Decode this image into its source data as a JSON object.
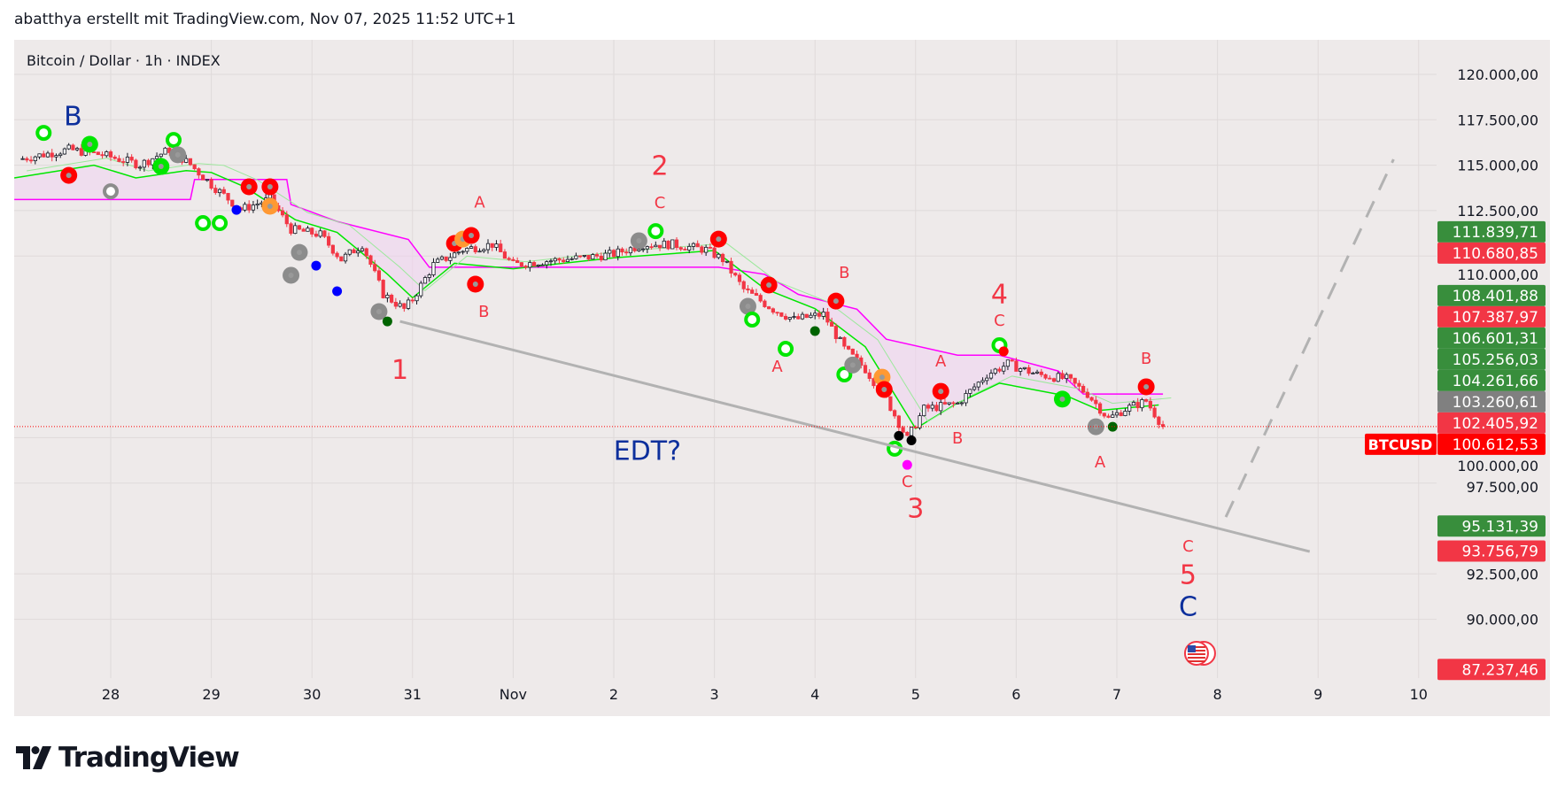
{
  "header": {
    "text": "abatthya erstellt mit TradingView.com, Nov 07, 2025 11:52 UTC+1"
  },
  "symbol": {
    "title": "Bitcoin / Dollar · 1h · INDEX"
  },
  "logo": {
    "text": "TradingView"
  },
  "chart_data": {
    "type": "candlestick",
    "title": "Bitcoin / Dollar · 1h · INDEX",
    "ylim": [
      86000,
      122300
    ],
    "grid": true,
    "y_ticks": [
      {
        "value": 120000,
        "label": "120.000,00"
      },
      {
        "value": 117500,
        "label": "117.500,00"
      },
      {
        "value": 115000,
        "label": "115.000,00"
      },
      {
        "value": 112500,
        "label": "112.500,00"
      },
      {
        "value": 110000,
        "label": "110.000,00"
      },
      {
        "value": 100000,
        "label": "100.000,00"
      },
      {
        "value": 97500,
        "label": "97.500,00"
      },
      {
        "value": 92500,
        "label": "92.500,00"
      },
      {
        "value": 90000,
        "label": "90.000,00"
      }
    ],
    "x_ticks": [
      {
        "t": "2025-10-28T00:00",
        "label": "28"
      },
      {
        "t": "2025-10-29T00:00",
        "label": "29"
      },
      {
        "t": "2025-10-30T00:00",
        "label": "30"
      },
      {
        "t": "2025-10-31T00:00",
        "label": "31"
      },
      {
        "t": "2025-11-01T00:00",
        "label": "Nov"
      },
      {
        "t": "2025-11-02T00:00",
        "label": "2"
      },
      {
        "t": "2025-11-03T00:00",
        "label": "3"
      },
      {
        "t": "2025-11-04T00:00",
        "label": "4"
      },
      {
        "t": "2025-11-05T00:00",
        "label": "5"
      },
      {
        "t": "2025-11-06T00:00",
        "label": "6"
      },
      {
        "t": "2025-11-07T00:00",
        "label": "7"
      },
      {
        "t": "2025-11-08T00:00",
        "label": "8"
      },
      {
        "t": "2025-11-09T00:00",
        "label": "9"
      },
      {
        "t": "2025-11-10T00:00",
        "label": "10"
      }
    ],
    "price_path": [
      [
        "2025-10-27T02:00",
        115320
      ],
      [
        "2025-10-27T14:00",
        115860
      ],
      [
        "2025-10-27T22:00",
        115570
      ],
      [
        "2025-10-28T07:00",
        115030
      ],
      [
        "2025-10-28T14:00",
        115860
      ],
      [
        "2025-10-28T19:00",
        115030
      ],
      [
        "2025-10-29T00:00",
        113930
      ],
      [
        "2025-10-29T07:00",
        112560
      ],
      [
        "2025-10-29T14:00",
        113130
      ],
      [
        "2025-10-29T19:00",
        111470
      ],
      [
        "2025-10-30T02:00",
        111180
      ],
      [
        "2025-10-30T07:00",
        109810
      ],
      [
        "2025-10-30T12:00",
        110640
      ],
      [
        "2025-10-30T17:00",
        107900
      ],
      [
        "2025-10-30T22:00",
        107070
      ],
      [
        "2025-10-31T00:00",
        107620
      ],
      [
        "2025-10-31T05:00",
        109520
      ],
      [
        "2025-10-31T12:00",
        110350
      ],
      [
        "2025-10-31T19:00",
        110640
      ],
      [
        "2025-11-01T00:00",
        109520
      ],
      [
        "2025-11-01T07:00",
        109710
      ],
      [
        "2025-11-01T17:00",
        109910
      ],
      [
        "2025-11-02T00:00",
        110110
      ],
      [
        "2025-11-02T07:00",
        110640
      ],
      [
        "2025-11-02T14:00",
        110640
      ],
      [
        "2025-11-02T22:00",
        110350
      ],
      [
        "2025-11-03T02:00",
        109810
      ],
      [
        "2025-11-03T07:00",
        108160
      ],
      [
        "2025-11-03T14:00",
        107070
      ],
      [
        "2025-11-03T19:00",
        106500
      ],
      [
        "2025-11-04T02:00",
        106790
      ],
      [
        "2025-11-04T07:00",
        104890
      ],
      [
        "2025-11-04T12:00",
        103770
      ],
      [
        "2025-11-04T17:00",
        102120
      ],
      [
        "2025-11-04T22:00",
        99930
      ],
      [
        "2025-11-05T02:00",
        101580
      ],
      [
        "2025-11-05T10:00",
        101870
      ],
      [
        "2025-11-05T17:00",
        103480
      ],
      [
        "2025-11-05T22:00",
        104060
      ],
      [
        "2025-11-06T05:00",
        103480
      ],
      [
        "2025-11-06T12:00",
        103230
      ],
      [
        "2025-11-06T17:00",
        102410
      ],
      [
        "2025-11-06T22:00",
        101040
      ],
      [
        "2025-11-07T02:00",
        101580
      ],
      [
        "2025-11-07T07:00",
        102020
      ],
      [
        "2025-11-07T11:00",
        100612.53
      ]
    ],
    "upper_band": [
      [
        "2025-10-27T01:00",
        113110
      ],
      [
        "2025-10-28T19:00",
        113110
      ],
      [
        "2025-10-28T20:00",
        114210
      ],
      [
        "2025-10-29T18:00",
        114210
      ],
      [
        "2025-10-29T19:00",
        112840
      ],
      [
        "2025-10-30T06:00",
        111900
      ],
      [
        "2025-10-30T23:00",
        110910
      ],
      [
        "2025-10-31T04:00",
        109380
      ],
      [
        "2025-11-03T01:00",
        109380
      ],
      [
        "2025-11-03T12:00",
        108990
      ],
      [
        "2025-11-03T20:00",
        107890
      ],
      [
        "2025-11-04T10:00",
        107070
      ],
      [
        "2025-11-04T17:00",
        105420
      ],
      [
        "2025-11-05T10:00",
        104540
      ],
      [
        "2025-11-05T20:00",
        104540
      ],
      [
        "2025-11-06T10:00",
        103670
      ],
      [
        "2025-11-06T16:00",
        102400
      ],
      [
        "2025-11-07T11:00",
        102400
      ]
    ],
    "lower_band": [
      [
        "2025-10-27T01:00",
        114300
      ],
      [
        "2025-10-27T20:00",
        115000
      ],
      [
        "2025-10-28T06:00",
        114300
      ],
      [
        "2025-10-28T18:00",
        114700
      ],
      [
        "2025-10-29T00:00",
        114600
      ],
      [
        "2025-10-29T08:00",
        113800
      ],
      [
        "2025-10-29T20:00",
        112000
      ],
      [
        "2025-10-30T06:00",
        111300
      ],
      [
        "2025-10-30T18:00",
        109000
      ],
      [
        "2025-10-31T00:00",
        107700
      ],
      [
        "2025-10-31T10:00",
        109600
      ],
      [
        "2025-11-01T00:00",
        109300
      ],
      [
        "2025-11-02T00:00",
        109900
      ],
      [
        "2025-11-03T00:00",
        110300
      ],
      [
        "2025-11-03T12:00",
        108200
      ],
      [
        "2025-11-04T00:00",
        107100
      ],
      [
        "2025-11-04T12:00",
        105000
      ],
      [
        "2025-11-05T00:00",
        100500
      ],
      [
        "2025-11-05T10:00",
        101900
      ],
      [
        "2025-11-05T20:00",
        103000
      ],
      [
        "2025-11-06T12:00",
        102300
      ],
      [
        "2025-11-06T20:00",
        101500
      ],
      [
        "2025-11-07T10:00",
        101800
      ]
    ],
    "markers": [
      {
        "t": "2025-10-27T08:00",
        "p": 116780,
        "color": "#00e600",
        "style": "ring"
      },
      {
        "t": "2025-10-27T19:00",
        "p": 116150,
        "color": "#00e600",
        "style": "fill"
      },
      {
        "t": "2025-10-27T14:00",
        "p": 114440,
        "color": "#ff0000",
        "style": "fill"
      },
      {
        "t": "2025-10-28T00:00",
        "p": 113560,
        "color": "#8c8c8c",
        "style": "ring"
      },
      {
        "t": "2025-10-28T12:00",
        "p": 114930,
        "color": "#00e600",
        "style": "fill"
      },
      {
        "t": "2025-10-28T15:00",
        "p": 116390,
        "color": "#00e600",
        "style": "ring"
      },
      {
        "t": "2025-10-28T16:00",
        "p": 115570,
        "color": "#8c8c8c",
        "style": "fill"
      },
      {
        "t": "2025-10-28T22:00",
        "p": 111810,
        "color": "#00e600",
        "style": "ring"
      },
      {
        "t": "2025-10-29T02:00",
        "p": 111810,
        "color": "#00e600",
        "style": "ring"
      },
      {
        "t": "2025-10-29T06:00",
        "p": 112540,
        "color": "#0000ff",
        "style": "small"
      },
      {
        "t": "2025-10-29T09:00",
        "p": 113810,
        "color": "#ff0000",
        "style": "fill"
      },
      {
        "t": "2025-10-29T14:00",
        "p": 113810,
        "color": "#ff0000",
        "style": "fill"
      },
      {
        "t": "2025-10-29T14:00",
        "p": 112740,
        "color": "#ff9933",
        "style": "fill"
      },
      {
        "t": "2025-10-29T19:00",
        "p": 108940,
        "color": "#8c8c8c",
        "style": "fill"
      },
      {
        "t": "2025-10-29T21:00",
        "p": 110200,
        "color": "#8c8c8c",
        "style": "fill"
      },
      {
        "t": "2025-10-30T01:00",
        "p": 109470,
        "color": "#0000ff",
        "style": "small"
      },
      {
        "t": "2025-10-30T06:00",
        "p": 108060,
        "color": "#0000ff",
        "style": "small"
      },
      {
        "t": "2025-10-30T16:00",
        "p": 106940,
        "color": "#8c8c8c",
        "style": "fill"
      },
      {
        "t": "2025-10-30T18:00",
        "p": 106400,
        "color": "#006400",
        "style": "small"
      },
      {
        "t": "2025-10-31T10:00",
        "p": 110690,
        "color": "#ff0000",
        "style": "fill"
      },
      {
        "t": "2025-10-31T12:00",
        "p": 110930,
        "color": "#ff9933",
        "style": "fill"
      },
      {
        "t": "2025-10-31T14:00",
        "p": 111130,
        "color": "#ff0000",
        "style": "fill"
      },
      {
        "t": "2025-10-31T15:00",
        "p": 108450,
        "color": "#ff0000",
        "style": "fill"
      },
      {
        "t": "2025-11-02T06:00",
        "p": 110840,
        "color": "#8c8c8c",
        "style": "fill"
      },
      {
        "t": "2025-11-02T10:00",
        "p": 111370,
        "color": "#00e600",
        "style": "ring"
      },
      {
        "t": "2025-11-03T01:00",
        "p": 110930,
        "color": "#ff0000",
        "style": "fill"
      },
      {
        "t": "2025-11-03T08:00",
        "p": 107230,
        "color": "#8c8c8c",
        "style": "fill"
      },
      {
        "t": "2025-11-03T09:00",
        "p": 106500,
        "color": "#00e600",
        "style": "ring"
      },
      {
        "t": "2025-11-03T13:00",
        "p": 108400,
        "color": "#ff0000",
        "style": "fill"
      },
      {
        "t": "2025-11-03T17:00",
        "p": 104890,
        "color": "#00e600",
        "style": "ring"
      },
      {
        "t": "2025-11-04T00:00",
        "p": 105870,
        "color": "#006400",
        "style": "small"
      },
      {
        "t": "2025-11-04T05:00",
        "p": 107520,
        "color": "#ff0000",
        "style": "fill"
      },
      {
        "t": "2025-11-04T07:00",
        "p": 103480,
        "color": "#00e600",
        "style": "ring"
      },
      {
        "t": "2025-11-04T09:00",
        "p": 104000,
        "color": "#8c8c8c",
        "style": "fill"
      },
      {
        "t": "2025-11-04T16:00",
        "p": 103330,
        "color": "#ff9933",
        "style": "fill"
      },
      {
        "t": "2025-11-04T16:30",
        "p": 102650,
        "color": "#ff0000",
        "style": "fill"
      },
      {
        "t": "2025-11-04T19:00",
        "p": 99390,
        "color": "#00e600",
        "style": "ring"
      },
      {
        "t": "2025-11-04T20:00",
        "p": 100100,
        "color": "#000000",
        "style": "small"
      },
      {
        "t": "2025-11-04T23:00",
        "p": 99850,
        "color": "#000000",
        "style": "small"
      },
      {
        "t": "2025-11-04T22:00",
        "p": 98500,
        "color": "#ff00ff",
        "style": "small"
      },
      {
        "t": "2025-11-05T06:00",
        "p": 102550,
        "color": "#ff0000",
        "style": "fill"
      },
      {
        "t": "2025-11-05T20:00",
        "p": 105090,
        "color": "#00e600",
        "style": "ring"
      },
      {
        "t": "2025-11-05T21:00",
        "p": 104750,
        "color": "#ff0000",
        "style": "small"
      },
      {
        "t": "2025-11-06T11:00",
        "p": 102120,
        "color": "#00e600",
        "style": "fill"
      },
      {
        "t": "2025-11-06T19:00",
        "p": 100600,
        "color": "#8c8c8c",
        "style": "fill"
      },
      {
        "t": "2025-11-06T23:00",
        "p": 100600,
        "color": "#006400",
        "style": "small"
      },
      {
        "t": "2025-11-07T07:00",
        "p": 102800,
        "color": "#ff0000",
        "style": "fill"
      }
    ],
    "annotations": [
      {
        "t": "2025-10-27T15:00",
        "p": 117610,
        "text": "B",
        "color": "#0d2f9c",
        "size": "large"
      },
      {
        "t": "2025-10-30T21:00",
        "p": 103660,
        "text": "1",
        "color": "#f23645",
        "size": "large"
      },
      {
        "t": "2025-10-31T16:00",
        "p": 112900,
        "text": "A",
        "color": "#f23645",
        "size": "small"
      },
      {
        "t": "2025-10-31T17:00",
        "p": 106900,
        "text": "B",
        "color": "#f23645",
        "size": "small"
      },
      {
        "t": "2025-11-02T11:00",
        "p": 114880,
        "text": "2",
        "color": "#f23645",
        "size": "large"
      },
      {
        "t": "2025-11-02T11:00",
        "p": 112880,
        "text": "C",
        "color": "#f23645",
        "size": "small"
      },
      {
        "t": "2025-11-03T15:00",
        "p": 103870,
        "text": "A",
        "color": "#f23645",
        "size": "small"
      },
      {
        "t": "2025-11-04T07:00",
        "p": 109040,
        "text": "B",
        "color": "#f23645",
        "size": "small"
      },
      {
        "t": "2025-11-04T22:00",
        "p": 97530,
        "text": "C",
        "color": "#f23645",
        "size": "small"
      },
      {
        "t": "2025-11-05T00:00",
        "p": 96030,
        "text": "3",
        "color": "#f23645",
        "size": "large"
      },
      {
        "t": "2025-11-05T06:00",
        "p": 104160,
        "text": "A",
        "color": "#f23645",
        "size": "small"
      },
      {
        "t": "2025-11-05T10:00",
        "p": 99930,
        "text": "B",
        "color": "#f23645",
        "size": "small"
      },
      {
        "t": "2025-11-05T20:00",
        "p": 107820,
        "text": "4",
        "color": "#f23645",
        "size": "large"
      },
      {
        "t": "2025-11-05T20:00",
        "p": 106400,
        "text": "C",
        "color": "#f23645",
        "size": "small"
      },
      {
        "t": "2025-11-06T20:00",
        "p": 98610,
        "text": "A",
        "color": "#f23645",
        "size": "small"
      },
      {
        "t": "2025-11-07T07:00",
        "p": 104300,
        "text": "B",
        "color": "#f23645",
        "size": "small"
      },
      {
        "t": "2025-11-07T17:00",
        "p": 93970,
        "text": "C",
        "color": "#f23645",
        "size": "small"
      },
      {
        "t": "2025-11-07T17:00",
        "p": 92370,
        "text": "5",
        "color": "#f23645",
        "size": "large"
      },
      {
        "t": "2025-11-07T17:00",
        "p": 90620,
        "text": "C",
        "color": "#0d2f9c",
        "size": "large"
      },
      {
        "t": "2025-11-02T08:00",
        "p": 99200,
        "text": "EDT?",
        "color": "#0d2f9c",
        "size": "large"
      }
    ],
    "trendline": {
      "from": [
        "2025-10-30T21:00",
        106400
      ],
      "to": [
        "2025-11-08T22:00",
        93730
      ],
      "color": "#b2b2b2",
      "style": "solid"
    },
    "projection": {
      "from": [
        "2025-11-08T02:00",
        95630
      ],
      "to": [
        "2025-11-09T18:00",
        115320
      ],
      "color": "#b2b2b2",
      "style": "dashed"
    },
    "current_price": {
      "value": 100612.53,
      "label": "100.612,53",
      "symbol": "BTCUSD",
      "color": "#ff0000"
    },
    "price_tags": [
      {
        "value": 111839.71,
        "label": "111.839,71",
        "color": "#388e3c"
      },
      {
        "value": 110680.85,
        "label": "110.680,85",
        "color": "#f23645"
      },
      {
        "value": 108401.88,
        "label": "108.401,88",
        "color": "#388e3c"
      },
      {
        "value": 107387.97,
        "label": "107.387,97",
        "color": "#f23645"
      },
      {
        "value": 106601.31,
        "label": "106.601,31",
        "color": "#388e3c"
      },
      {
        "value": 105256.03,
        "label": "105.256,03",
        "color": "#388e3c"
      },
      {
        "value": 104261.66,
        "label": "104.261,66",
        "color": "#388e3c"
      },
      {
        "value": 103260.61,
        "label": "103.260,61",
        "color": "#808080"
      },
      {
        "value": 102405.92,
        "label": "102.405,92",
        "color": "#f23645"
      },
      {
        "value": 95131.39,
        "label": "95.131,39",
        "color": "#388e3c"
      },
      {
        "value": 93756.79,
        "label": "93.756,79",
        "color": "#f23645"
      },
      {
        "value": 87237.46,
        "label": "87.237,46",
        "color": "#f23645"
      }
    ],
    "events": [
      {
        "t": "2025-11-07T19:00",
        "icon": "us-flag-icon"
      }
    ],
    "colors": {
      "background": "#eeeaea",
      "grid": "#dfdada",
      "up": "#ffffff",
      "down": "#f23645",
      "upper_band": "#ff00ff",
      "lower_band": "#00e600",
      "band_fill": "#f0d4f0"
    }
  }
}
